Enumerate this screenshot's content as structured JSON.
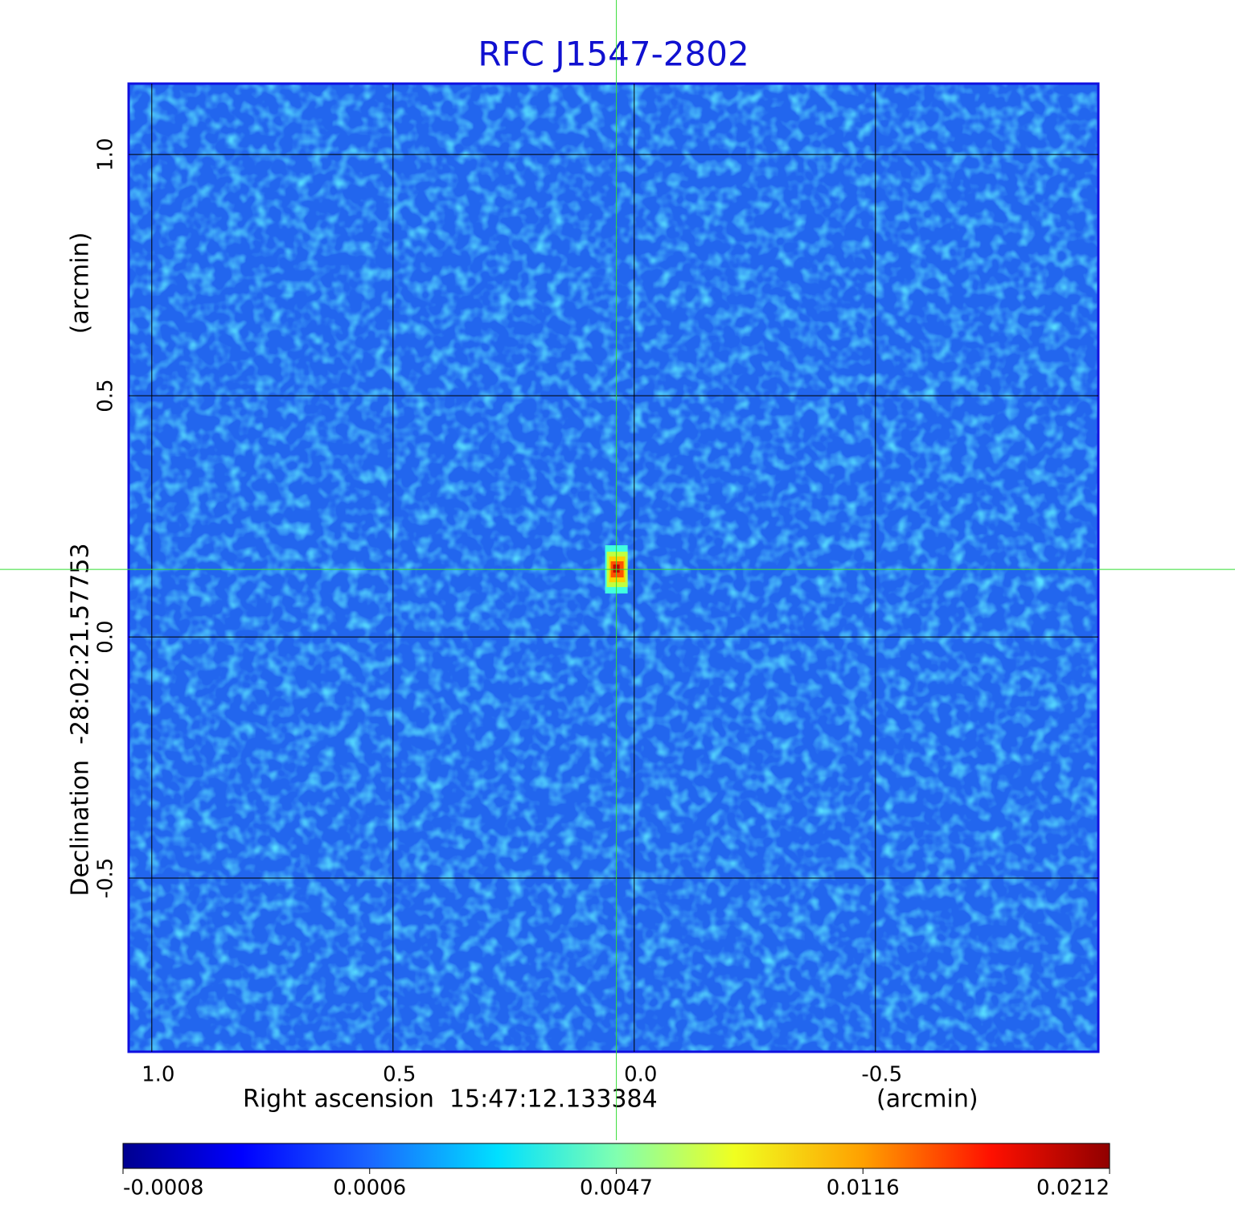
{
  "chart_data": {
    "type": "image",
    "title": "RFC J1547-2802",
    "xlabel": "Right ascension  15:47:12.133384",
    "xunit": "(arcmin)",
    "ylabel": "Declination  -28:02:21.57753",
    "yunit": "(arcmin)",
    "xlim": [
      1.048,
      -0.962
    ],
    "ylim": [
      -0.86,
      1.147
    ],
    "xticks": [
      {
        "value": 1,
        "label": "1.0"
      },
      0.5,
      {
        "value": 0,
        "label": "0.0"
      },
      -0.5
    ],
    "yticks": [
      -0.5,
      {
        "value": 0,
        "label": "0.0"
      },
      0.5,
      {
        "value": 1,
        "label": "1.0"
      }
    ],
    "grid": true,
    "marker": {
      "x": 0.037,
      "y": 0.14,
      "color": "#33dd33"
    },
    "colorbar": {
      "ticks": [
        -0.0008,
        0.0006,
        0.0047,
        0.0116,
        0.0212
      ]
    }
  }
}
